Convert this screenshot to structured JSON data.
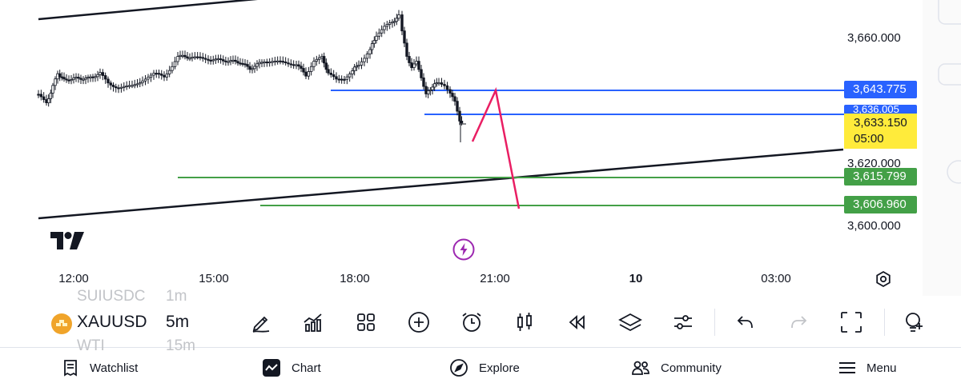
{
  "price_axis": {
    "ticks": [
      "3,660.000",
      "3,620.000",
      "3,600.000"
    ]
  },
  "badges": [
    {
      "value": "3,643.775",
      "color": "#2962ff"
    },
    {
      "value": "3,636.005",
      "color": "#2962ff"
    },
    {
      "value": "3,615.799",
      "color": "#43a047"
    },
    {
      "value": "3,606.960",
      "color": "#43a047"
    }
  ],
  "last_price": {
    "value": "3,633.150",
    "countdown": "05:00",
    "color": "#ffeb3b"
  },
  "time_axis": {
    "ticks": [
      {
        "label": "12:00",
        "bold": false
      },
      {
        "label": "15:00",
        "bold": false
      },
      {
        "label": "18:00",
        "bold": false
      },
      {
        "label": "21:00",
        "bold": false
      },
      {
        "label": "10",
        "bold": true
      },
      {
        "label": "03:00",
        "bold": false
      }
    ]
  },
  "toolbar": {
    "symbol": "XAUUSD",
    "interval": "5m",
    "ghost_symbol_above": "SUIUSDC",
    "ghost_interval_above": "1m",
    "ghost_symbol_below": "WTI",
    "ghost_interval_below": "15m",
    "buttons": [
      "pencil-icon",
      "indicators-icon",
      "templates-icon",
      "add-icon",
      "alert-icon",
      "chart-type-icon",
      "replay-icon",
      "layers-icon",
      "settings-sliders-icon",
      "undo-icon",
      "redo-icon",
      "fullscreen-icon",
      "ideas-icon"
    ]
  },
  "nav": {
    "watchlist": "Watchlist",
    "chart": "Chart",
    "explore": "Explore",
    "community": "Community",
    "menu": "Menu"
  },
  "colors": {
    "blue_line": "#2962ff",
    "green_line": "#43a047",
    "trend_line": "#131722",
    "pink_line": "#e91e63",
    "candle": "#131722"
  }
}
